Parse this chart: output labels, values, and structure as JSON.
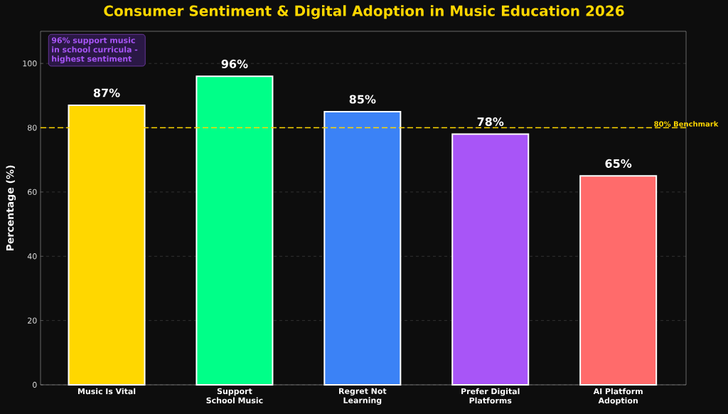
{
  "chart_data": {
    "type": "bar",
    "title": "Consumer Sentiment & Digital Adoption in Music Education 2026",
    "ylabel": "Percentage (%)",
    "categories": [
      "Music Is Vital",
      "Support School Music",
      "Regret Not Learning",
      "Prefer Digital Platforms",
      "AI Platform Adoption"
    ],
    "values": [
      87,
      96,
      85,
      78,
      65
    ],
    "colors": [
      "#ffd700",
      "#00ff88",
      "#3b82f6",
      "#a855f7",
      "#ff6b6b"
    ],
    "value_labels": [
      "87%",
      "96%",
      "85%",
      "78%",
      "65%"
    ],
    "ylim": [
      0,
      110
    ],
    "yticks": [
      0,
      20,
      40,
      60,
      80,
      100
    ],
    "grid": "y",
    "ref_lines": [
      {
        "axis": "y",
        "value": 80,
        "label": "80% Benchmark",
        "color": "#ffd700",
        "line_style": "dashed"
      }
    ],
    "annotations": [
      "96% support music in school curricula - highest sentiment"
    ]
  }
}
